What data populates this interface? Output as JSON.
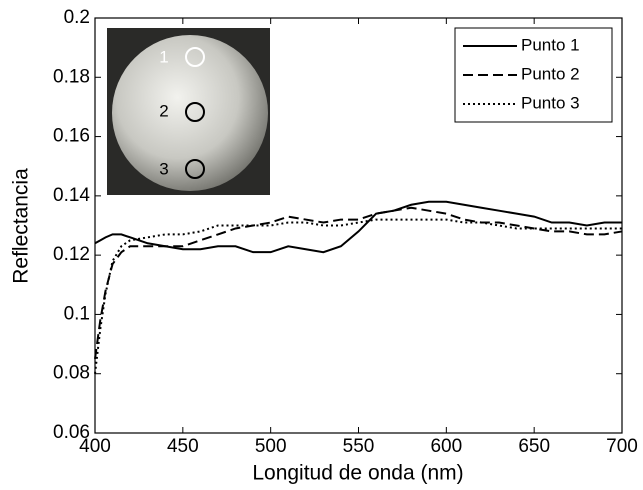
{
  "chart_data": {
    "type": "line",
    "x_label": "Longitud de onda (nm)",
    "y_label": "Reflectancia",
    "x": [
      400,
      403,
      406,
      410,
      415,
      420,
      430,
      440,
      450,
      460,
      470,
      480,
      490,
      500,
      510,
      520,
      530,
      540,
      550,
      560,
      570,
      580,
      590,
      600,
      610,
      620,
      630,
      640,
      650,
      660,
      670,
      680,
      690,
      700
    ],
    "series": [
      {
        "name": "Punto 1",
        "color": "#000000",
        "dash": "solid",
        "values": [
          0.124,
          0.125,
          0.126,
          0.127,
          0.127,
          0.126,
          0.124,
          0.123,
          0.122,
          0.122,
          0.123,
          0.123,
          0.121,
          0.121,
          0.123,
          0.122,
          0.121,
          0.123,
          0.128,
          0.134,
          0.135,
          0.137,
          0.138,
          0.138,
          0.137,
          0.136,
          0.135,
          0.134,
          0.133,
          0.131,
          0.131,
          0.13,
          0.131,
          0.131
        ]
      },
      {
        "name": "Punto 2",
        "color": "#000000",
        "dash": "dashed",
        "values": [
          0.085,
          0.098,
          0.108,
          0.117,
          0.121,
          0.123,
          0.123,
          0.123,
          0.123,
          0.125,
          0.127,
          0.129,
          0.13,
          0.131,
          0.133,
          0.132,
          0.131,
          0.132,
          0.132,
          0.134,
          0.135,
          0.136,
          0.135,
          0.134,
          0.132,
          0.131,
          0.131,
          0.13,
          0.129,
          0.128,
          0.128,
          0.127,
          0.127,
          0.128
        ]
      },
      {
        "name": "Punto 3",
        "color": "#000000",
        "dash": "dotted",
        "values": [
          0.08,
          0.095,
          0.107,
          0.118,
          0.123,
          0.125,
          0.126,
          0.127,
          0.127,
          0.128,
          0.13,
          0.13,
          0.13,
          0.13,
          0.131,
          0.131,
          0.13,
          0.13,
          0.131,
          0.132,
          0.132,
          0.132,
          0.132,
          0.132,
          0.131,
          0.131,
          0.13,
          0.129,
          0.129,
          0.129,
          0.129,
          0.129,
          0.129,
          0.129
        ]
      }
    ],
    "xlim": [
      400,
      700
    ],
    "xticks": [
      400,
      450,
      500,
      550,
      600,
      650,
      700
    ],
    "ylim": [
      0.06,
      0.2
    ],
    "yticks": [
      0.06,
      0.08,
      0.1,
      0.12,
      0.14,
      0.16,
      0.18,
      0.2
    ],
    "legend": "upper right",
    "inset_labels": [
      "1",
      "2",
      "3"
    ]
  }
}
